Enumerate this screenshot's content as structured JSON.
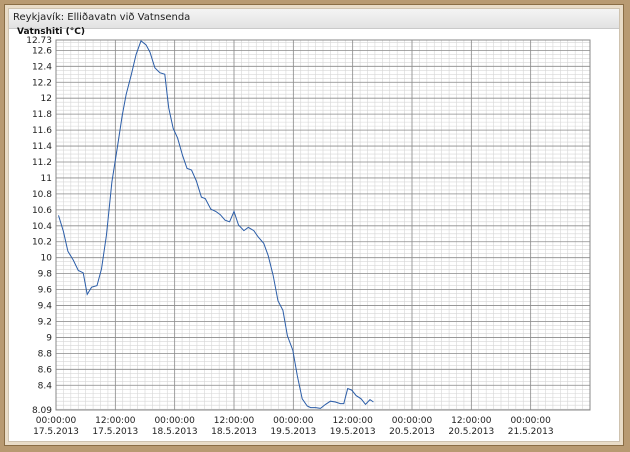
{
  "window": {
    "title": "Reykjavík: Elliðavatn við Vatnsenda"
  },
  "chart_data": {
    "type": "line",
    "title": "Reykjavík: Elliðavatn við Vatnsenda",
    "ylabel": "Vatnshiti (°C)",
    "xlabel": "",
    "ylim": [
      8.09,
      12.73
    ],
    "xlim_hours": [
      0,
      108
    ],
    "yticks": [
      12.73,
      12.6,
      12.4,
      12.2,
      12,
      11.8,
      11.6,
      11.4,
      11.2,
      11,
      10.8,
      10.6,
      10.4,
      10.2,
      10,
      9.8,
      9.6,
      9.4,
      9.2,
      9,
      8.8,
      8.6,
      8.4,
      8.09
    ],
    "xticks": [
      {
        "h": 0,
        "time": "00:00:00",
        "date": "17.5.2013"
      },
      {
        "h": 12,
        "time": "12:00:00",
        "date": "17.5.2013"
      },
      {
        "h": 24,
        "time": "00:00:00",
        "date": "18.5.2013"
      },
      {
        "h": 36,
        "time": "12:00:00",
        "date": "18.5.2013"
      },
      {
        "h": 48,
        "time": "00:00:00",
        "date": "19.5.2013"
      },
      {
        "h": 60,
        "time": "12:00:00",
        "date": "19.5.2013"
      },
      {
        "h": 72,
        "time": "00:00:00",
        "date": "20.5.2013"
      },
      {
        "h": 84,
        "time": "12:00:00",
        "date": "20.5.2013"
      },
      {
        "h": 96,
        "time": "00:00:00",
        "date": "21.5.2013"
      }
    ],
    "grid": true,
    "line_color": "#2b5da8",
    "series": [
      {
        "name": "",
        "points": [
          [
            0.5,
            10.53
          ],
          [
            1.5,
            10.33
          ],
          [
            2.4,
            10.08
          ],
          [
            3.5,
            9.97
          ],
          [
            4.5,
            9.84
          ],
          [
            5.5,
            9.81
          ],
          [
            6.3,
            9.54
          ],
          [
            7.2,
            9.63
          ],
          [
            8.3,
            9.65
          ],
          [
            9.2,
            9.86
          ],
          [
            10.2,
            10.28
          ],
          [
            11.3,
            10.95
          ],
          [
            12.5,
            11.42
          ],
          [
            13.4,
            11.79
          ],
          [
            14.2,
            12.05
          ],
          [
            15.2,
            12.29
          ],
          [
            16.2,
            12.55
          ],
          [
            17.2,
            12.72
          ],
          [
            18.2,
            12.67
          ],
          [
            19.0,
            12.58
          ],
          [
            20.0,
            12.38
          ],
          [
            21.0,
            12.32
          ],
          [
            22.0,
            12.3
          ],
          [
            22.8,
            11.88
          ],
          [
            23.7,
            11.62
          ],
          [
            24.6,
            11.5
          ],
          [
            25.6,
            11.28
          ],
          [
            26.5,
            11.12
          ],
          [
            27.4,
            11.1
          ],
          [
            28.4,
            10.96
          ],
          [
            29.4,
            10.76
          ],
          [
            30.2,
            10.74
          ],
          [
            31.3,
            10.61
          ],
          [
            32.3,
            10.58
          ],
          [
            33.2,
            10.54
          ],
          [
            34.2,
            10.47
          ],
          [
            35.1,
            10.45
          ],
          [
            36.0,
            10.58
          ],
          [
            36.9,
            10.41
          ],
          [
            38.0,
            10.34
          ],
          [
            38.9,
            10.38
          ],
          [
            40.0,
            10.34
          ],
          [
            40.9,
            10.26
          ],
          [
            42.0,
            10.18
          ],
          [
            42.9,
            10.03
          ],
          [
            43.9,
            9.78
          ],
          [
            44.9,
            9.46
          ],
          [
            45.9,
            9.34
          ],
          [
            46.8,
            9.02
          ],
          [
            47.9,
            8.84
          ],
          [
            48.8,
            8.52
          ],
          [
            49.8,
            8.23
          ],
          [
            50.8,
            8.14
          ],
          [
            51.5,
            8.12
          ],
          [
            52.5,
            8.12
          ],
          [
            53.5,
            8.11
          ],
          [
            54.5,
            8.16
          ],
          [
            55.5,
            8.2
          ],
          [
            56.5,
            8.19
          ],
          [
            57.5,
            8.17
          ],
          [
            58.2,
            8.17
          ],
          [
            59.0,
            8.36
          ],
          [
            59.8,
            8.34
          ],
          [
            60.7,
            8.27
          ],
          [
            61.7,
            8.23
          ],
          [
            62.6,
            8.16
          ],
          [
            63.5,
            8.22
          ],
          [
            64.2,
            8.19
          ]
        ]
      }
    ]
  }
}
